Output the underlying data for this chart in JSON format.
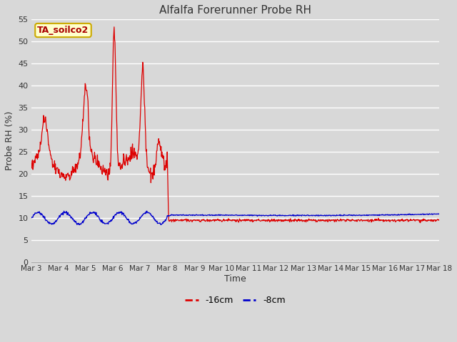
{
  "title": "Alfalfa Forerunner Probe RH",
  "ylabel": "Probe RH (%)",
  "xlabel": "Time",
  "ylim": [
    0,
    55
  ],
  "yticks": [
    0,
    5,
    10,
    15,
    20,
    25,
    30,
    35,
    40,
    45,
    50,
    55
  ],
  "bg_color": "#d8d8d8",
  "plot_bg": "#d8d8d8",
  "grid_color": "#ffffff",
  "label_box_text": "TA_soilco2",
  "label_box_bg": "#ffffcc",
  "label_box_edge": "#ccaa00",
  "label_box_text_color": "#aa0000",
  "line_16cm_color": "#dd0000",
  "line_8cm_color": "#0000cc",
  "legend_16cm": "-16cm",
  "legend_8cm": "-8cm",
  "n_points": 1000,
  "seed": 42,
  "xtick_labels": [
    "Mar 3",
    "Mar 4",
    "Mar 5",
    "Mar 6",
    "Mar 7",
    "Mar 8",
    "Mar 9",
    "Mar 10",
    "Mar 11",
    "Mar 12",
    "Mar 13",
    "Mar 14",
    "Mar 15",
    "Mar 16",
    "Mar 17",
    "Mar 18"
  ]
}
